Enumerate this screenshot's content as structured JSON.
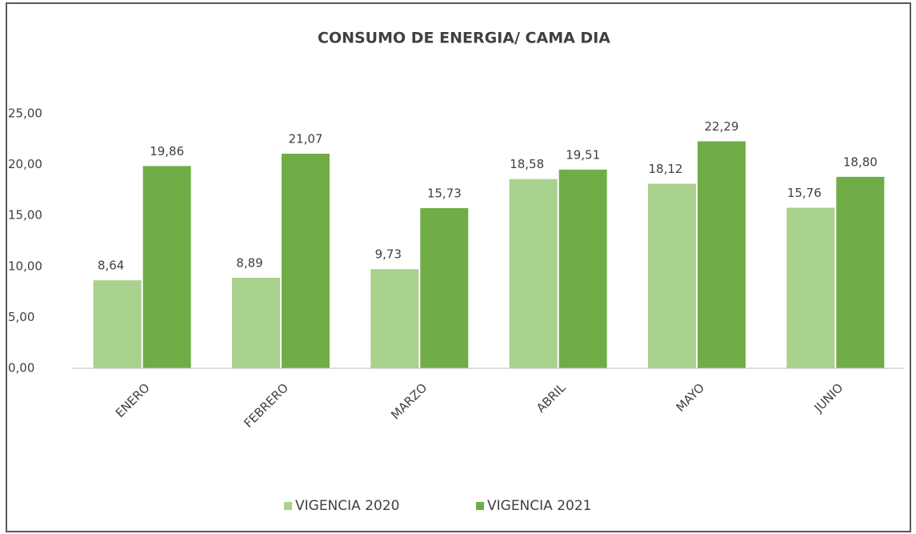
{
  "chart_data": {
    "type": "bar",
    "title": "CONSUMO DE ENERGIA/ CAMA DIA",
    "categories": [
      "ENERO",
      "FEBRERO",
      "MARZO",
      "ABRIL",
      "MAYO",
      "JUNIO"
    ],
    "series": [
      {
        "name": "VIGENCIA 2020",
        "color": "#a9d18e",
        "values": [
          8.64,
          8.89,
          9.73,
          18.58,
          18.12,
          15.76
        ],
        "value_labels": [
          "8,64",
          "8,89",
          "9,73",
          "18,58",
          "18,12",
          "15,76"
        ]
      },
      {
        "name": "VIGENCIA 2021",
        "color": "#70ad47",
        "values": [
          19.86,
          21.07,
          15.73,
          19.51,
          22.29,
          18.8
        ],
        "value_labels": [
          "19,86",
          "21,07",
          "15,73",
          "19,51",
          "22,29",
          "18,80"
        ]
      }
    ],
    "ylim": [
      0,
      25
    ],
    "yticks": [
      {
        "value": 0,
        "label": "0,00"
      },
      {
        "value": 5,
        "label": "5,00"
      },
      {
        "value": 10,
        "label": "10,00"
      },
      {
        "value": 15,
        "label": "15,00"
      },
      {
        "value": 20,
        "label": "20,00"
      },
      {
        "value": 25,
        "label": "25,00"
      }
    ],
    "grid": false,
    "legend": "bottom"
  }
}
